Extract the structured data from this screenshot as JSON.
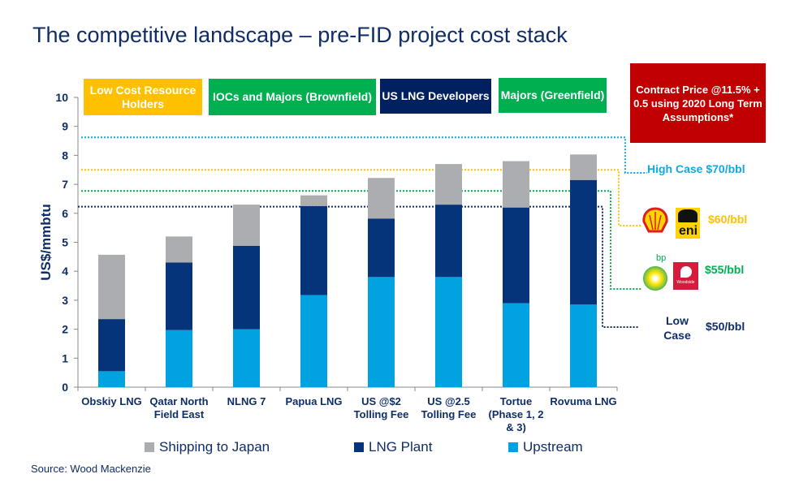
{
  "title": "The competitive landscape – pre-FID project cost stack",
  "groups": [
    {
      "label": "Low Cost Resource Holders",
      "color": "#ffc000"
    },
    {
      "label": "IOCs and Majors (Brownfield)",
      "color": "#00b050"
    },
    {
      "label": "US LNG Developers",
      "color": "#002060"
    },
    {
      "label": "Majors (Greenfield)",
      "color": "#00b050"
    }
  ],
  "contract_box": "Contract Price @11.5% + 0.5 using 2020 Long Term Assumptions*",
  "price_cases": [
    {
      "label": "High Case $70/bbl",
      "value": 8.62,
      "color": "#12a8e0"
    },
    {
      "label": "$60/bbl",
      "value": 7.5,
      "color": "#ffc000",
      "logos": [
        "shell-logo",
        "eni-logo"
      ]
    },
    {
      "label": "$55/bbl",
      "value": 6.77,
      "color": "#00b050",
      "logos": [
        "bp-logo",
        "woodside-logo"
      ]
    },
    {
      "case": "Low Case",
      "label": "$50/bbl",
      "value": 6.23,
      "color": "#0f2d69"
    }
  ],
  "logo_text": {
    "bp": "bp",
    "eni": "eni",
    "woodside": "Woodside"
  },
  "chart_data": {
    "type": "bar",
    "stacked": true,
    "ylabel": "US$/mmbtu",
    "ylim": [
      0,
      10
    ],
    "yticks": [
      0,
      1,
      2,
      3,
      4,
      5,
      6,
      7,
      8,
      9,
      10
    ],
    "grid": false,
    "legend_position": "bottom",
    "categories": [
      "Obskiy LNG",
      "Qatar North Field East",
      "NLNG 7",
      "Papua LNG",
      "US @$2 Tolling Fee",
      "US @2.5 Tolling Fee",
      "Tortue (Phase 1, 2 & 3)",
      "Rovuma LNG"
    ],
    "series": [
      {
        "name": "Upstream",
        "color": "#00a3e0",
        "values": [
          0.55,
          1.97,
          2.0,
          3.18,
          3.8,
          3.8,
          2.9,
          2.85
        ]
      },
      {
        "name": "LNG Plant",
        "color": "#06347a",
        "values": [
          1.8,
          2.33,
          2.88,
          3.07,
          2.02,
          2.5,
          3.3,
          4.3
        ]
      },
      {
        "name": "Shipping to Japan",
        "color": "#abadb0",
        "values": [
          2.22,
          0.9,
          1.42,
          0.37,
          1.4,
          1.4,
          1.6,
          0.88
        ]
      }
    ]
  },
  "source": "Source: Wood Mackenzie"
}
